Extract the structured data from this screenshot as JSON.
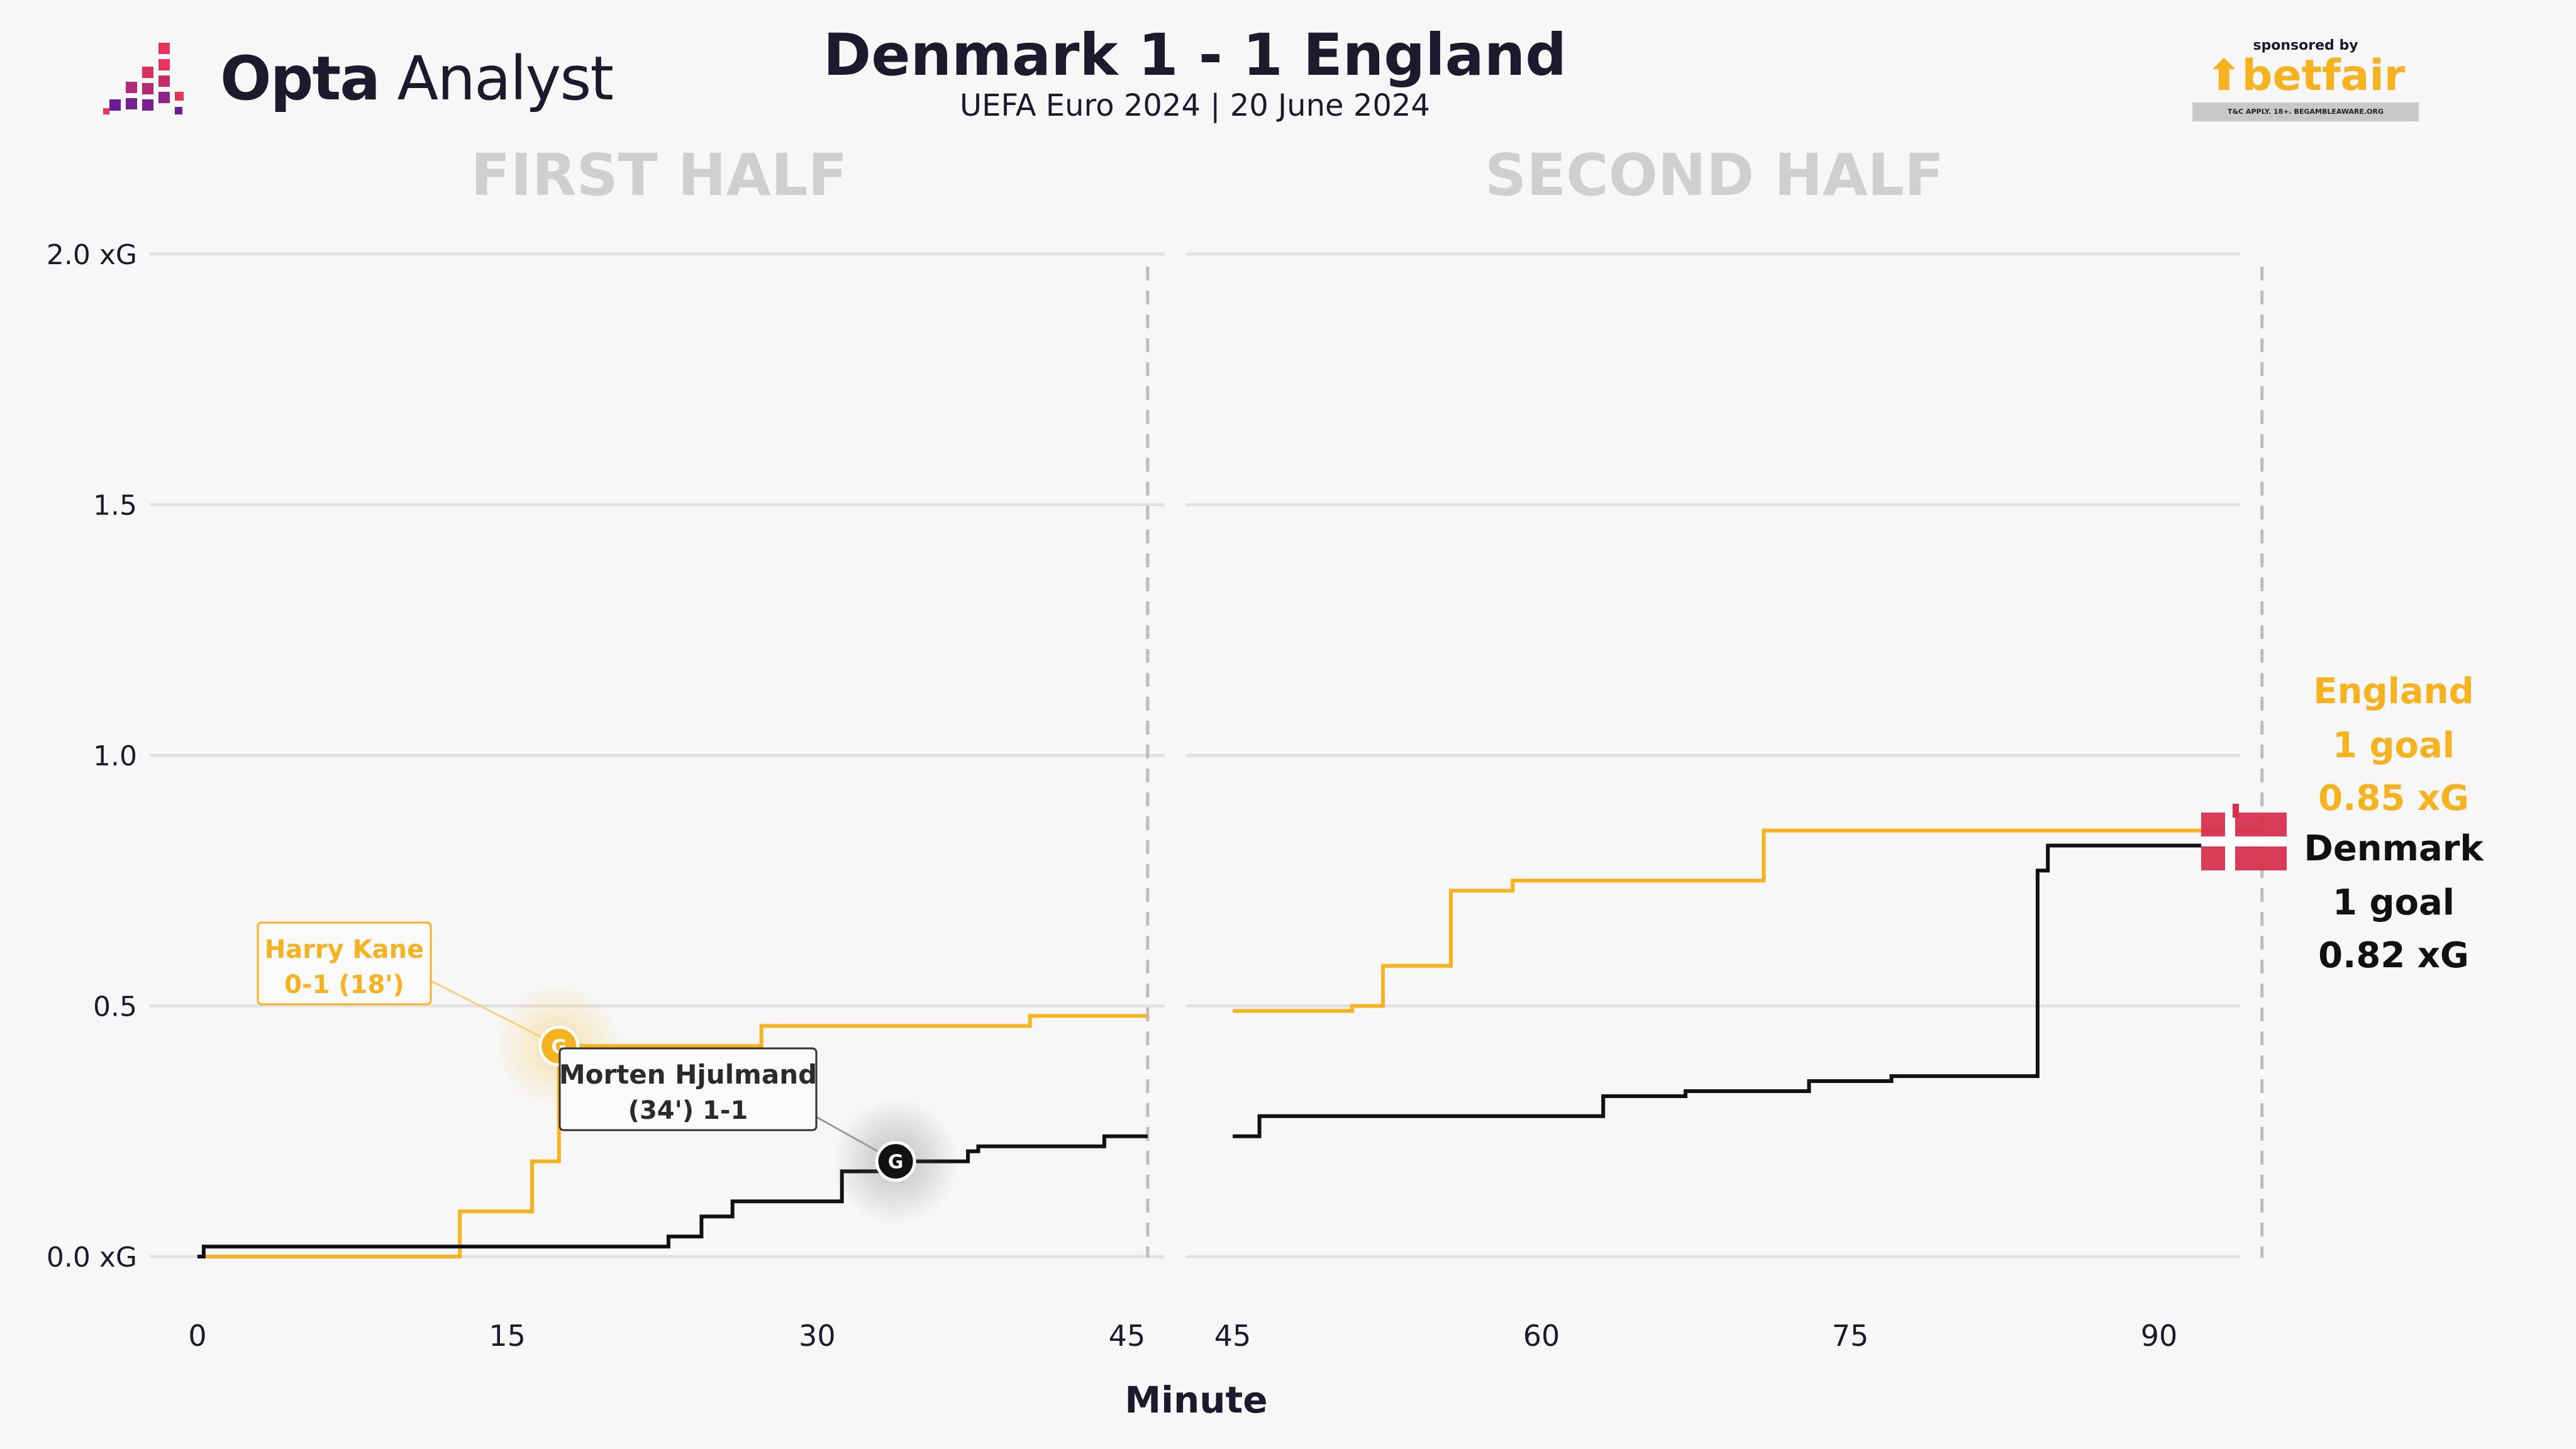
{
  "brand": {
    "logo_text_bold": "Opta",
    "logo_text": "Analyst"
  },
  "header": {
    "title": "Denmark 1 - 1 England",
    "subtitle": "UEFA Euro 2024 | 20 June 2024"
  },
  "sponsor": {
    "label": "sponsored by",
    "name": "betfair",
    "disclaimer": "T&C APPLY. 18+. BEGAMBLEAWARE.ORG"
  },
  "colors": {
    "england": "#f7b21f",
    "denmark": "#111111",
    "background": "#f7f7f7",
    "grid": "#e2e2e2",
    "half_label": "#cfcfcf",
    "text": "#1e1a2e",
    "flag_red": "#d6314f"
  },
  "chart_data": {
    "type": "line",
    "step": true,
    "xlabel": "Minute",
    "ylabel": "",
    "ylim": [
      0,
      2.0
    ],
    "yticks": [
      0.0,
      0.5,
      1.0,
      1.5,
      2.0
    ],
    "ytick_labels": [
      "0.0 xG",
      "0.5",
      "1.0",
      "1.5",
      "2.0 xG"
    ],
    "grid": true,
    "panels": [
      {
        "label": "FIRST HALF",
        "xlim": [
          0,
          48
        ],
        "xticks": [
          0,
          15,
          30,
          45
        ],
        "end_minute": 46
      },
      {
        "label": "SECOND HALF",
        "xlim": [
          45,
          97
        ],
        "xticks": [
          45,
          60,
          75,
          90
        ],
        "end_minute": 95
      }
    ],
    "series": [
      {
        "name": "England",
        "goals_label": "1 goal",
        "xg_label": "0.85 xG",
        "final_xg": 0.85,
        "points": [
          [
            0,
            0.0
          ],
          [
            12.7,
            0.0
          ],
          [
            12.7,
            0.09
          ],
          [
            16.2,
            0.09
          ],
          [
            16.2,
            0.19
          ],
          [
            17.5,
            0.19
          ],
          [
            17.5,
            0.42
          ],
          [
            27.3,
            0.42
          ],
          [
            27.3,
            0.46
          ],
          [
            40.3,
            0.46
          ],
          [
            40.3,
            0.48
          ],
          [
            46,
            0.48
          ],
          [
            45,
            0.49
          ],
          [
            50.8,
            0.49
          ],
          [
            50.8,
            0.5
          ],
          [
            52.3,
            0.5
          ],
          [
            52.3,
            0.58
          ],
          [
            55.6,
            0.58
          ],
          [
            55.6,
            0.73
          ],
          [
            58.6,
            0.73
          ],
          [
            58.6,
            0.75
          ],
          [
            70.8,
            0.75
          ],
          [
            70.8,
            0.85
          ],
          [
            95,
            0.85
          ]
        ]
      },
      {
        "name": "Denmark",
        "goals_label": "1 goal",
        "xg_label": "0.82 xG",
        "final_xg": 0.82,
        "points": [
          [
            0,
            0.0
          ],
          [
            0.3,
            0.0
          ],
          [
            0.3,
            0.02
          ],
          [
            22.8,
            0.02
          ],
          [
            22.8,
            0.04
          ],
          [
            24.4,
            0.04
          ],
          [
            24.4,
            0.08
          ],
          [
            25.9,
            0.08
          ],
          [
            25.9,
            0.11
          ],
          [
            31.2,
            0.11
          ],
          [
            31.2,
            0.17
          ],
          [
            33.8,
            0.17
          ],
          [
            33.8,
            0.19
          ],
          [
            37.3,
            0.19
          ],
          [
            37.3,
            0.21
          ],
          [
            37.8,
            0.21
          ],
          [
            37.8,
            0.22
          ],
          [
            43.9,
            0.22
          ],
          [
            43.9,
            0.24
          ],
          [
            46,
            0.24
          ],
          [
            45,
            0.24
          ],
          [
            46.3,
            0.24
          ],
          [
            46.3,
            0.28
          ],
          [
            63.0,
            0.28
          ],
          [
            63.0,
            0.32
          ],
          [
            67.0,
            0.32
          ],
          [
            67.0,
            0.33
          ],
          [
            73.0,
            0.33
          ],
          [
            73.0,
            0.35
          ],
          [
            77.0,
            0.35
          ],
          [
            77.0,
            0.36
          ],
          [
            84.1,
            0.36
          ],
          [
            84.1,
            0.77
          ],
          [
            84.6,
            0.77
          ],
          [
            84.6,
            0.82
          ],
          [
            95,
            0.82
          ]
        ]
      }
    ],
    "annotations": [
      {
        "team": "England",
        "minute": 17.5,
        "xg": 0.42,
        "marker": "G",
        "line1": "Harry Kane",
        "line2": "0-1 (18')"
      },
      {
        "team": "Denmark",
        "minute": 33.8,
        "xg": 0.19,
        "marker": "G",
        "line1": "Morten Hjulmand",
        "line2": "(34') 1-1"
      }
    ]
  }
}
